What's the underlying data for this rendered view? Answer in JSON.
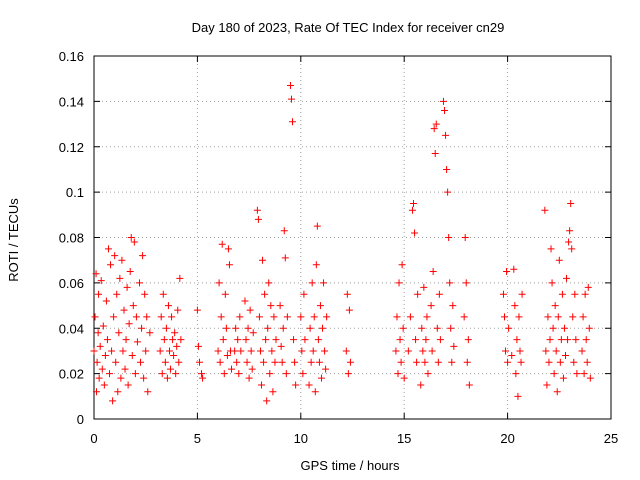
{
  "chart_data": {
    "type": "scatter",
    "title": "Day 180 of 2023, Rate Of TEC Index for receiver cn29",
    "xlabel": "GPS time / hours",
    "ylabel": "ROTI / TECUs",
    "xlim": [
      0,
      25
    ],
    "ylim": [
      0,
      0.16
    ],
    "x_ticks": [
      0,
      5,
      10,
      15,
      20,
      25
    ],
    "x_tick_labels": [
      "0",
      "5",
      "10",
      "15",
      "20",
      "25"
    ],
    "y_ticks": [
      0,
      0.02,
      0.04,
      0.06,
      0.08,
      0.1,
      0.12,
      0.14,
      0.16
    ],
    "y_tick_labels": [
      "0",
      "0.02",
      "0.04",
      "0.06",
      "0.08",
      "0.1",
      "0.12",
      "0.14",
      "0.16"
    ],
    "grid": true,
    "marker": "plus",
    "color": "#ff0000",
    "series": [
      {
        "points": [
          [
            0.0,
            0.03
          ],
          [
            0.05,
            0.045
          ],
          [
            0.1,
            0.064
          ],
          [
            0.12,
            0.012
          ],
          [
            0.15,
            0.025
          ],
          [
            0.2,
            0.038
          ],
          [
            0.22,
            0.055
          ],
          [
            0.25,
            0.018
          ],
          [
            0.3,
            0.032
          ],
          [
            0.35,
            0.061
          ],
          [
            0.4,
            0.022
          ],
          [
            0.45,
            0.041
          ],
          [
            0.5,
            0.015
          ],
          [
            0.55,
            0.028
          ],
          [
            0.6,
            0.052
          ],
          [
            0.65,
            0.035
          ],
          [
            0.7,
            0.075
          ],
          [
            0.75,
            0.02
          ],
          [
            0.8,
            0.068
          ],
          [
            0.85,
            0.03
          ],
          [
            0.9,
            0.008
          ],
          [
            0.95,
            0.045
          ],
          [
            1.0,
            0.072
          ],
          [
            1.05,
            0.025
          ],
          [
            1.1,
            0.055
          ],
          [
            1.15,
            0.012
          ],
          [
            1.2,
            0.038
          ],
          [
            1.25,
            0.062
          ],
          [
            1.3,
            0.018
          ],
          [
            1.35,
            0.07
          ],
          [
            1.4,
            0.03
          ],
          [
            1.45,
            0.048
          ],
          [
            1.5,
            0.022
          ],
          [
            1.55,
            0.035
          ],
          [
            1.6,
            0.058
          ],
          [
            1.65,
            0.015
          ],
          [
            1.7,
            0.042
          ],
          [
            1.75,
            0.065
          ],
          [
            1.8,
            0.08
          ],
          [
            1.85,
            0.028
          ],
          [
            1.9,
            0.05
          ],
          [
            1.95,
            0.078
          ],
          [
            2.0,
            0.02
          ],
          [
            2.05,
            0.045
          ],
          [
            2.1,
            0.034
          ],
          [
            2.2,
            0.06
          ],
          [
            2.25,
            0.025
          ],
          [
            2.3,
            0.04
          ],
          [
            2.35,
            0.072
          ],
          [
            2.4,
            0.018
          ],
          [
            2.45,
            0.055
          ],
          [
            2.5,
            0.03
          ],
          [
            2.55,
            0.045
          ],
          [
            2.6,
            0.012
          ],
          [
            2.7,
            0.038
          ],
          [
            3.2,
            0.03
          ],
          [
            3.25,
            0.045
          ],
          [
            3.3,
            0.02
          ],
          [
            3.35,
            0.055
          ],
          [
            3.4,
            0.035
          ],
          [
            3.45,
            0.025
          ],
          [
            3.5,
            0.04
          ],
          [
            3.55,
            0.018
          ],
          [
            3.6,
            0.05
          ],
          [
            3.65,
            0.03
          ],
          [
            3.7,
            0.022
          ],
          [
            3.75,
            0.045
          ],
          [
            3.8,
            0.035
          ],
          [
            3.85,
            0.028
          ],
          [
            3.9,
            0.038
          ],
          [
            3.95,
            0.02
          ],
          [
            4.0,
            0.032
          ],
          [
            4.05,
            0.048
          ],
          [
            4.1,
            0.025
          ],
          [
            4.15,
            0.062
          ],
          [
            4.2,
            0.035
          ],
          [
            5.0,
            0.048
          ],
          [
            5.05,
            0.032
          ],
          [
            5.1,
            0.025
          ],
          [
            5.2,
            0.02
          ],
          [
            5.25,
            0.018
          ],
          [
            6.0,
            0.03
          ],
          [
            6.05,
            0.06
          ],
          [
            6.1,
            0.025
          ],
          [
            6.15,
            0.045
          ],
          [
            6.2,
            0.077
          ],
          [
            6.25,
            0.035
          ],
          [
            6.3,
            0.02
          ],
          [
            6.35,
            0.055
          ],
          [
            6.4,
            0.04
          ],
          [
            6.45,
            0.028
          ],
          [
            6.5,
            0.075
          ],
          [
            6.55,
            0.068
          ],
          [
            6.6,
            0.03
          ],
          [
            6.65,
            0.022
          ],
          [
            6.8,
            0.03
          ],
          [
            6.85,
            0.04
          ],
          [
            6.9,
            0.025
          ],
          [
            6.95,
            0.035
          ],
          [
            7.0,
            0.02
          ],
          [
            7.05,
            0.045
          ],
          [
            7.1,
            0.03
          ],
          [
            7.3,
            0.052
          ],
          [
            7.35,
            0.035
          ],
          [
            7.4,
            0.025
          ],
          [
            7.45,
            0.04
          ],
          [
            7.5,
            0.018
          ],
          [
            7.55,
            0.048
          ],
          [
            7.6,
            0.03
          ],
          [
            7.65,
            0.022
          ],
          [
            7.7,
            0.038
          ],
          [
            7.9,
            0.092
          ],
          [
            7.95,
            0.088
          ],
          [
            8.0,
            0.045
          ],
          [
            8.05,
            0.03
          ],
          [
            8.1,
            0.015
          ],
          [
            8.15,
            0.07
          ],
          [
            8.2,
            0.025
          ],
          [
            8.25,
            0.055
          ],
          [
            8.3,
            0.035
          ],
          [
            8.35,
            0.008
          ],
          [
            8.4,
            0.04
          ],
          [
            8.45,
            0.06
          ],
          [
            8.5,
            0.02
          ],
          [
            8.55,
            0.05
          ],
          [
            8.6,
            0.03
          ],
          [
            8.65,
            0.012
          ],
          [
            8.7,
            0.045
          ],
          [
            8.75,
            0.025
          ],
          [
            8.8,
            0.035
          ],
          [
            9.0,
            0.05
          ],
          [
            9.05,
            0.032
          ],
          [
            9.1,
            0.025
          ],
          [
            9.15,
            0.04
          ],
          [
            9.2,
            0.083
          ],
          [
            9.25,
            0.071
          ],
          [
            9.3,
            0.02
          ],
          [
            9.35,
            0.045
          ],
          [
            9.5,
            0.147
          ],
          [
            9.55,
            0.141
          ],
          [
            9.6,
            0.131
          ],
          [
            9.65,
            0.035
          ],
          [
            9.7,
            0.025
          ],
          [
            9.75,
            0.015
          ],
          [
            10.0,
            0.045
          ],
          [
            10.05,
            0.03
          ],
          [
            10.1,
            0.02
          ],
          [
            10.15,
            0.055
          ],
          [
            10.2,
            0.035
          ],
          [
            10.4,
            0.015
          ],
          [
            10.45,
            0.04
          ],
          [
            10.5,
            0.025
          ],
          [
            10.55,
            0.06
          ],
          [
            10.6,
            0.03
          ],
          [
            10.65,
            0.045
          ],
          [
            10.7,
            0.012
          ],
          [
            10.75,
            0.068
          ],
          [
            10.8,
            0.085
          ],
          [
            10.85,
            0.035
          ],
          [
            10.9,
            0.025
          ],
          [
            10.95,
            0.05
          ],
          [
            11.0,
            0.018
          ],
          [
            11.05,
            0.04
          ],
          [
            11.1,
            0.06
          ],
          [
            11.15,
            0.03
          ],
          [
            11.2,
            0.022
          ],
          [
            11.25,
            0.045
          ],
          [
            12.2,
            0.03
          ],
          [
            12.25,
            0.055
          ],
          [
            12.3,
            0.02
          ],
          [
            12.35,
            0.048
          ],
          [
            12.4,
            0.025
          ],
          [
            14.6,
            0.03
          ],
          [
            14.65,
            0.045
          ],
          [
            14.7,
            0.02
          ],
          [
            14.75,
            0.06
          ],
          [
            14.8,
            0.035
          ],
          [
            14.85,
            0.025
          ],
          [
            14.9,
            0.068
          ],
          [
            14.95,
            0.04
          ],
          [
            15.0,
            0.018
          ],
          [
            15.2,
            0.03
          ],
          [
            15.3,
            0.045
          ],
          [
            15.4,
            0.092
          ],
          [
            15.45,
            0.095
          ],
          [
            15.5,
            0.082
          ],
          [
            15.55,
            0.035
          ],
          [
            15.6,
            0.025
          ],
          [
            15.65,
            0.055
          ],
          [
            15.8,
            0.015
          ],
          [
            15.85,
            0.04
          ],
          [
            15.9,
            0.03
          ],
          [
            15.95,
            0.058
          ],
          [
            16.0,
            0.025
          ],
          [
            16.05,
            0.035
          ],
          [
            16.1,
            0.045
          ],
          [
            16.15,
            0.02
          ],
          [
            16.3,
            0.05
          ],
          [
            16.35,
            0.03
          ],
          [
            16.4,
            0.065
          ],
          [
            16.45,
            0.128
          ],
          [
            16.5,
            0.117
          ],
          [
            16.55,
            0.13
          ],
          [
            16.6,
            0.04
          ],
          [
            16.65,
            0.025
          ],
          [
            16.7,
            0.055
          ],
          [
            16.75,
            0.035
          ],
          [
            16.9,
            0.14
          ],
          [
            16.95,
            0.136
          ],
          [
            17.0,
            0.125
          ],
          [
            17.05,
            0.11
          ],
          [
            17.1,
            0.1
          ],
          [
            17.15,
            0.08
          ],
          [
            17.2,
            0.06
          ],
          [
            17.25,
            0.04
          ],
          [
            17.3,
            0.025
          ],
          [
            17.35,
            0.05
          ],
          [
            17.4,
            0.032
          ],
          [
            17.9,
            0.045
          ],
          [
            17.95,
            0.08
          ],
          [
            18.0,
            0.06
          ],
          [
            18.05,
            0.025
          ],
          [
            18.1,
            0.035
          ],
          [
            18.15,
            0.015
          ],
          [
            19.8,
            0.055
          ],
          [
            19.85,
            0.045
          ],
          [
            19.9,
            0.03
          ],
          [
            19.95,
            0.065
          ],
          [
            20.0,
            0.025
          ],
          [
            20.05,
            0.04
          ],
          [
            20.2,
            0.028
          ],
          [
            20.3,
            0.066
          ],
          [
            20.35,
            0.05
          ],
          [
            20.4,
            0.02
          ],
          [
            20.45,
            0.035
          ],
          [
            20.5,
            0.01
          ],
          [
            20.55,
            0.045
          ],
          [
            20.6,
            0.03
          ],
          [
            20.65,
            0.025
          ],
          [
            20.7,
            0.055
          ],
          [
            21.8,
            0.092
          ],
          [
            21.85,
            0.03
          ],
          [
            21.9,
            0.015
          ],
          [
            21.95,
            0.045
          ],
          [
            22.0,
            0.025
          ],
          [
            22.05,
            0.035
          ],
          [
            22.1,
            0.075
          ],
          [
            22.15,
            0.06
          ],
          [
            22.2,
            0.04
          ],
          [
            22.25,
            0.02
          ],
          [
            22.3,
            0.05
          ],
          [
            22.35,
            0.03
          ],
          [
            22.4,
            0.012
          ],
          [
            22.45,
            0.045
          ],
          [
            22.5,
            0.07
          ],
          [
            22.55,
            0.025
          ],
          [
            22.6,
            0.035
          ],
          [
            22.65,
            0.055
          ],
          [
            22.7,
            0.018
          ],
          [
            22.75,
            0.04
          ],
          [
            22.8,
            0.028
          ],
          [
            22.85,
            0.062
          ],
          [
            22.9,
            0.035
          ],
          [
            22.95,
            0.078
          ],
          [
            23.0,
            0.083
          ],
          [
            23.05,
            0.095
          ],
          [
            23.1,
            0.075
          ],
          [
            23.15,
            0.045
          ],
          [
            23.2,
            0.025
          ],
          [
            23.25,
            0.055
          ],
          [
            23.3,
            0.035
          ],
          [
            23.35,
            0.02
          ],
          [
            23.6,
            0.03
          ],
          [
            23.65,
            0.045
          ],
          [
            23.7,
            0.02
          ],
          [
            23.75,
            0.055
          ],
          [
            23.8,
            0.035
          ],
          [
            23.85,
            0.025
          ],
          [
            23.9,
            0.058
          ],
          [
            23.95,
            0.04
          ],
          [
            24.0,
            0.018
          ]
        ]
      }
    ]
  }
}
